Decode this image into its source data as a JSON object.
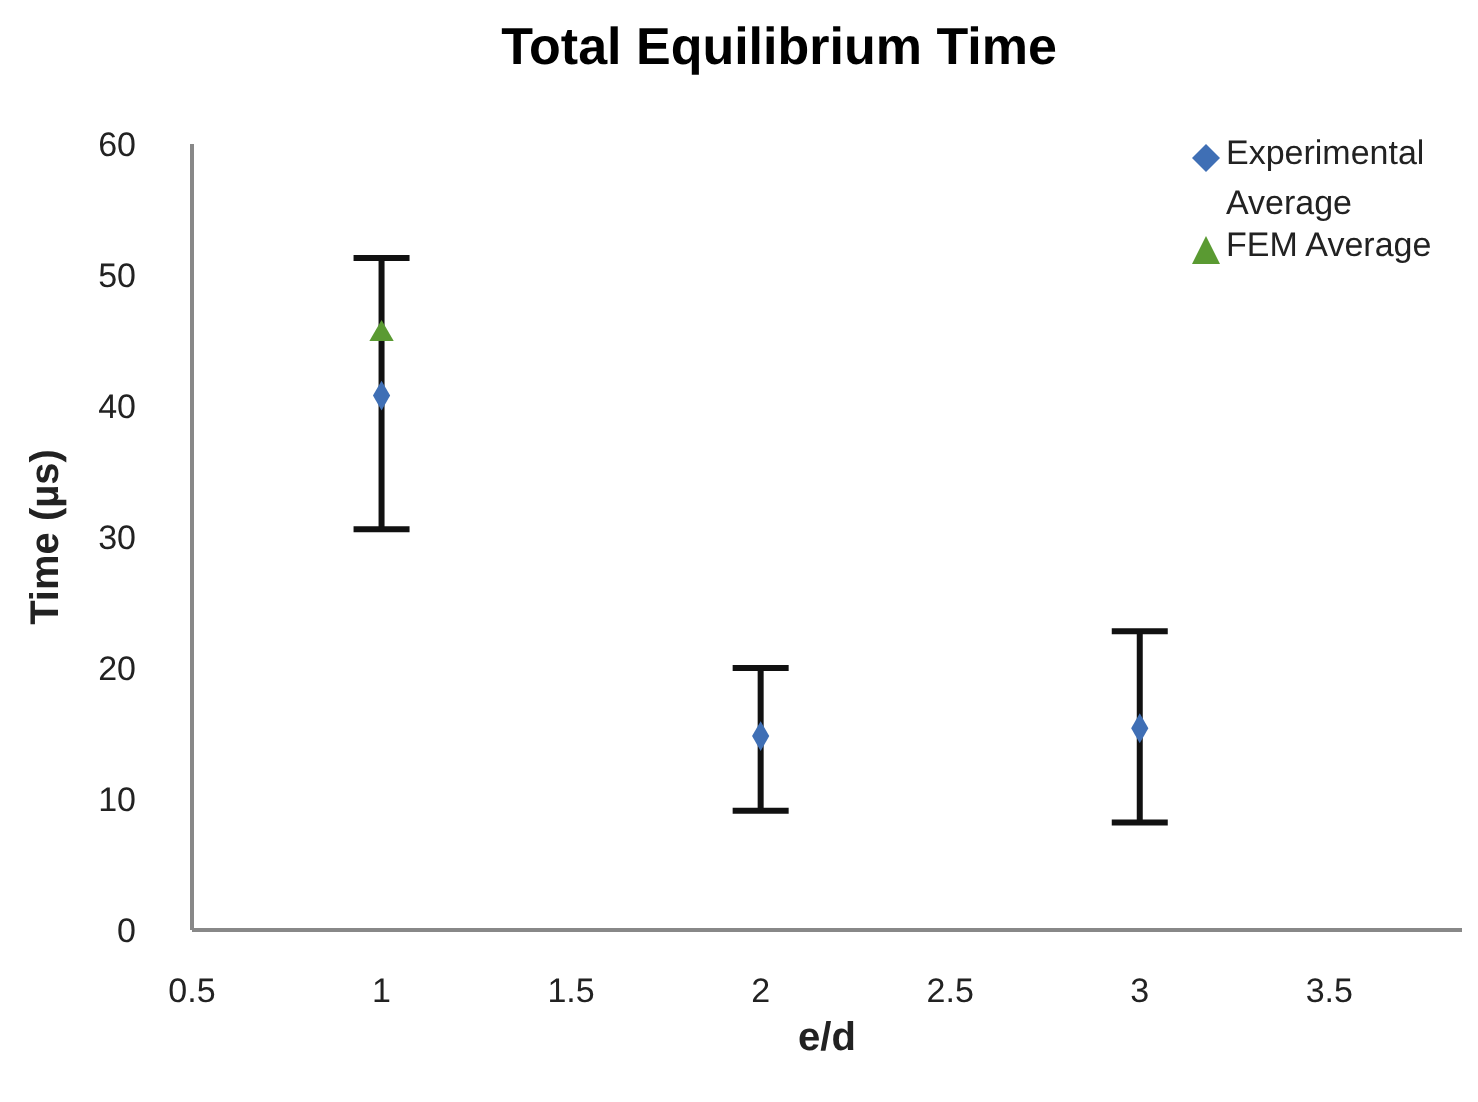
{
  "chart_data": {
    "type": "scatter",
    "title": "Total Equilibrium Time",
    "xlabel": "e/d",
    "ylabel": "Time (µs)",
    "xlim": [
      0.5,
      3.85
    ],
    "xticks": [
      0.5,
      1,
      1.5,
      2,
      2.5,
      3,
      3.5
    ],
    "ylim": [
      0,
      60
    ],
    "yticks": [
      0,
      10,
      20,
      30,
      40,
      50,
      60
    ],
    "grid": false,
    "legend": "top right",
    "series": [
      {
        "name": "Experimental Average",
        "color": "#3f6fb5",
        "marker": "diamond",
        "x": [
          1,
          2,
          3
        ],
        "values": [
          40.8,
          14.8,
          15.4
        ],
        "errors": [
          [
            30.6,
            51.3
          ],
          [
            9.1,
            20.0
          ],
          [
            8.2,
            22.8
          ]
        ]
      },
      {
        "name": "FEM Average",
        "color": "#5a9a32",
        "marker": "triangle",
        "x": [
          1
        ],
        "values": [
          45.5
        ]
      }
    ]
  }
}
